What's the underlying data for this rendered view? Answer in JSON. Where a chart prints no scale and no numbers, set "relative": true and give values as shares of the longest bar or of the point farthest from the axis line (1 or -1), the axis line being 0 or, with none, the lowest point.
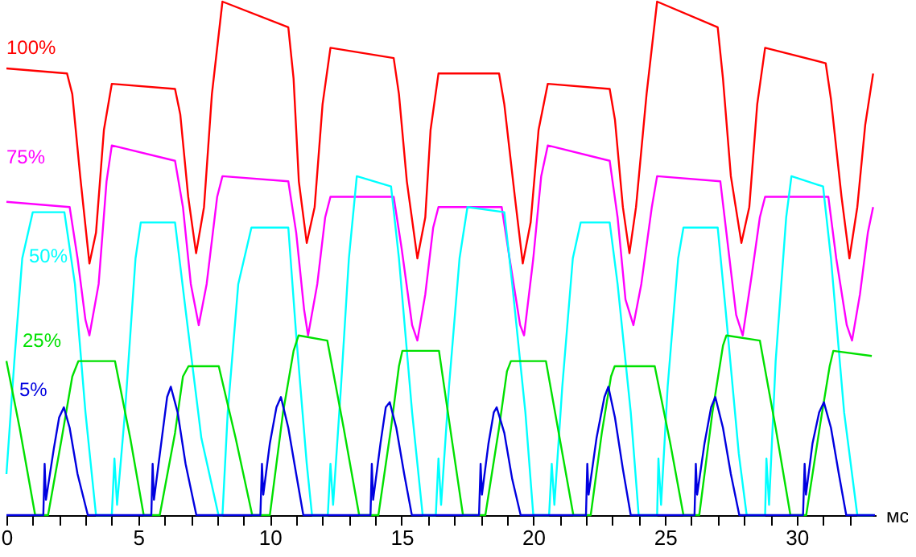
{
  "chart_data": {
    "type": "line",
    "relative": true,
    "xlabel": "мс",
    "xlim": [
      0,
      33
    ],
    "xticks": [
      0,
      {
        "value": 1,
        "label": null
      },
      {
        "value": 2,
        "label": null
      },
      {
        "value": 3,
        "label": null
      },
      {
        "value": 4,
        "label": null
      },
      5,
      {
        "value": 6,
        "label": null
      },
      {
        "value": 7,
        "label": null
      },
      {
        "value": 8,
        "label": null
      },
      {
        "value": 9,
        "label": null
      },
      10,
      {
        "value": 11,
        "label": null
      },
      {
        "value": 12,
        "label": null
      },
      {
        "value": 13,
        "label": null
      },
      {
        "value": 14,
        "label": null
      },
      15,
      {
        "value": 16,
        "label": null
      },
      {
        "value": 17,
        "label": null
      },
      {
        "value": 18,
        "label": null
      },
      {
        "value": 19,
        "label": null
      },
      20,
      {
        "value": 21,
        "label": null
      },
      {
        "value": 22,
        "label": null
      },
      {
        "value": 23,
        "label": null
      },
      {
        "value": 24,
        "label": null
      },
      25,
      {
        "value": 26,
        "label": null
      },
      {
        "value": 27,
        "label": null
      },
      {
        "value": 28,
        "label": null
      },
      {
        "value": 29,
        "label": null
      },
      30,
      {
        "value": 31,
        "label": null
      },
      {
        "value": 32,
        "label": null
      }
    ],
    "grid": false,
    "tick_labels": "x",
    "line_style": "solid",
    "marker": "none",
    "series": [
      {
        "name": "100%",
        "color": "#ff0000",
        "x": [
          0,
          2.3,
          2.5,
          2.8,
          3.15,
          3.4,
          3.7,
          4.0,
          6.4,
          6.6,
          6.9,
          7.2,
          7.5,
          7.8,
          8.2,
          10.7,
          10.9,
          11.1,
          11.4,
          11.7,
          12.0,
          12.3,
          14.7,
          14.9,
          15.2,
          15.6,
          15.9,
          16.1,
          16.4,
          18.7,
          18.9,
          19.3,
          19.6,
          19.9,
          20.2,
          20.55,
          22.9,
          23.1,
          23.4,
          23.65,
          23.9,
          24.3,
          24.7,
          27.0,
          27.2,
          27.5,
          27.9,
          28.2,
          28.5,
          28.8,
          31.1,
          31.3,
          31.7,
          32.0,
          32.3,
          32.6,
          32.9
        ],
        "values": [
          0.87,
          0.86,
          0.82,
          0.66,
          0.49,
          0.55,
          0.75,
          0.84,
          0.83,
          0.78,
          0.62,
          0.51,
          0.6,
          0.82,
          1.0,
          0.95,
          0.85,
          0.65,
          0.53,
          0.6,
          0.8,
          0.91,
          0.89,
          0.82,
          0.65,
          0.5,
          0.58,
          0.75,
          0.86,
          0.86,
          0.8,
          0.62,
          0.49,
          0.57,
          0.75,
          0.84,
          0.83,
          0.77,
          0.6,
          0.51,
          0.6,
          0.82,
          1.0,
          0.95,
          0.85,
          0.66,
          0.53,
          0.6,
          0.8,
          0.91,
          0.88,
          0.81,
          0.62,
          0.5,
          0.6,
          0.76,
          0.86
        ]
      },
      {
        "name": "75%",
        "color": "#ff00ff",
        "x": [
          0,
          2.4,
          2.7,
          3.0,
          3.15,
          3.5,
          3.8,
          4.0,
          6.4,
          6.7,
          7.0,
          7.3,
          7.6,
          8.0,
          8.2,
          10.7,
          11.0,
          11.3,
          11.45,
          11.8,
          12.1,
          12.3,
          14.7,
          15.0,
          15.4,
          15.6,
          15.9,
          16.2,
          16.4,
          18.8,
          19.1,
          19.5,
          19.65,
          20.0,
          20.3,
          20.55,
          22.9,
          23.2,
          23.5,
          23.8,
          24.1,
          24.5,
          24.7,
          27.1,
          27.4,
          27.7,
          27.95,
          28.3,
          28.6,
          28.8,
          31.2,
          31.5,
          31.9,
          32.1,
          32.4,
          32.7,
          32.9
        ],
        "values": [
          0.61,
          0.6,
          0.5,
          0.38,
          0.35,
          0.45,
          0.65,
          0.72,
          0.69,
          0.6,
          0.45,
          0.37,
          0.45,
          0.62,
          0.66,
          0.65,
          0.55,
          0.4,
          0.35,
          0.45,
          0.58,
          0.62,
          0.62,
          0.52,
          0.37,
          0.34,
          0.43,
          0.56,
          0.6,
          0.6,
          0.5,
          0.37,
          0.35,
          0.5,
          0.66,
          0.72,
          0.69,
          0.58,
          0.42,
          0.37,
          0.45,
          0.6,
          0.66,
          0.65,
          0.52,
          0.39,
          0.35,
          0.47,
          0.58,
          0.62,
          0.62,
          0.5,
          0.37,
          0.34,
          0.43,
          0.55,
          0.6
        ]
      },
      {
        "name": "50%",
        "color": "#00ffff",
        "x": [
          0,
          0.3,
          0.6,
          1.0,
          2.2,
          2.6,
          3.0,
          3.4,
          4.0,
          4.1,
          4.2,
          4.5,
          4.9,
          5.1,
          6.4,
          6.8,
          7.4,
          8.05,
          8.2,
          8.4,
          8.8,
          9.3,
          10.7,
          11.0,
          11.4,
          11.6,
          12.2,
          12.3,
          12.4,
          12.7,
          13.0,
          13.3,
          14.6,
          14.9,
          15.4,
          15.8,
          16.3,
          16.4,
          16.5,
          16.8,
          17.2,
          17.5,
          18.9,
          19.2,
          19.7,
          20.0,
          20.6,
          20.7,
          20.8,
          21.1,
          21.5,
          21.8,
          22.9,
          23.2,
          23.7,
          24.0,
          24.7,
          24.75,
          24.85,
          25.1,
          25.5,
          25.7,
          27.0,
          27.3,
          27.8,
          28.1,
          28.8,
          28.85,
          28.95,
          29.2,
          29.6,
          29.8,
          31.0,
          31.3,
          31.8,
          32.3,
          32.9
        ],
        "values": [
          0.08,
          0.3,
          0.5,
          0.59,
          0.59,
          0.45,
          0.2,
          0.0,
          0.0,
          0.11,
          0.02,
          0.2,
          0.5,
          0.57,
          0.57,
          0.4,
          0.15,
          0.0,
          0.0,
          0.2,
          0.45,
          0.56,
          0.56,
          0.35,
          0.1,
          0.0,
          0.0,
          0.1,
          0.02,
          0.25,
          0.5,
          0.66,
          0.64,
          0.5,
          0.2,
          0.0,
          0.0,
          0.11,
          0.02,
          0.25,
          0.5,
          0.6,
          0.59,
          0.45,
          0.2,
          0.0,
          0.0,
          0.1,
          0.02,
          0.25,
          0.5,
          0.57,
          0.57,
          0.45,
          0.2,
          0.0,
          0.0,
          0.11,
          0.02,
          0.25,
          0.5,
          0.56,
          0.56,
          0.4,
          0.12,
          0.0,
          0.0,
          0.11,
          0.02,
          0.3,
          0.58,
          0.66,
          0.64,
          0.5,
          0.2,
          0.0,
          0.0
        ]
      },
      {
        "name": "25%",
        "color": "#00e000",
        "x": [
          0,
          0.5,
          1.09,
          1.58,
          2.1,
          2.5,
          2.73,
          4.12,
          4.7,
          5.21,
          5.82,
          6.4,
          6.7,
          6.91,
          8.06,
          8.7,
          9.33,
          10.0,
          10.5,
          10.9,
          11.09,
          12.18,
          12.8,
          13.39,
          14.12,
          14.6,
          14.9,
          15.03,
          16.42,
          16.9,
          17.33,
          18.18,
          18.7,
          19.0,
          19.15,
          20.48,
          21.0,
          21.52,
          22.18,
          22.6,
          22.95,
          23.09,
          24.61,
          25.2,
          25.7,
          26.3,
          26.8,
          27.2,
          27.33,
          28.6,
          29.2,
          29.76,
          30.36,
          30.9,
          31.25,
          31.39,
          32.85
        ],
        "values": [
          0.3,
          0.17,
          0.0,
          0.0,
          0.15,
          0.27,
          0.3,
          0.3,
          0.15,
          0.0,
          0.0,
          0.16,
          0.27,
          0.29,
          0.29,
          0.15,
          0.0,
          0.0,
          0.2,
          0.32,
          0.35,
          0.34,
          0.17,
          0.0,
          0.0,
          0.17,
          0.29,
          0.32,
          0.32,
          0.15,
          0.0,
          0.0,
          0.17,
          0.28,
          0.3,
          0.3,
          0.15,
          0.0,
          0.0,
          0.16,
          0.27,
          0.29,
          0.29,
          0.14,
          0.0,
          0.0,
          0.2,
          0.33,
          0.35,
          0.34,
          0.17,
          0.0,
          0.0,
          0.18,
          0.29,
          0.32,
          0.31
        ]
      },
      {
        "name": "5%",
        "color": "#0000e0",
        "x": [
          0,
          1.4,
          1.45,
          1.5,
          1.8,
          2.0,
          2.18,
          2.4,
          2.7,
          3.09,
          5.5,
          5.55,
          5.6,
          5.9,
          6.1,
          6.24,
          6.5,
          6.8,
          7.21,
          9.64,
          9.7,
          9.75,
          10.0,
          10.25,
          10.42,
          10.7,
          11.0,
          11.27,
          13.82,
          13.87,
          13.92,
          14.2,
          14.4,
          14.55,
          14.8,
          15.1,
          15.39,
          17.94,
          18.0,
          18.05,
          18.3,
          18.5,
          18.61,
          18.9,
          19.2,
          19.52,
          22.0,
          22.05,
          22.1,
          22.4,
          22.7,
          22.85,
          23.1,
          23.4,
          23.7,
          26.12,
          26.17,
          26.22,
          26.5,
          26.75,
          26.91,
          27.2,
          27.5,
          27.82,
          30.24,
          30.3,
          30.35,
          30.6,
          30.85,
          31.03,
          31.3,
          31.6,
          31.88,
          32.97
        ],
        "values": [
          0,
          0,
          0.1,
          0.03,
          0.13,
          0.19,
          0.21,
          0.17,
          0.08,
          0.0,
          0.0,
          0.1,
          0.03,
          0.15,
          0.23,
          0.25,
          0.2,
          0.1,
          0.0,
          0.0,
          0.1,
          0.04,
          0.14,
          0.21,
          0.23,
          0.17,
          0.08,
          0.0,
          0.0,
          0.1,
          0.03,
          0.14,
          0.21,
          0.22,
          0.17,
          0.08,
          0.0,
          0.0,
          0.1,
          0.04,
          0.14,
          0.2,
          0.21,
          0.16,
          0.07,
          0.0,
          0.0,
          0.1,
          0.04,
          0.15,
          0.23,
          0.25,
          0.19,
          0.09,
          0.0,
          0.0,
          0.1,
          0.04,
          0.14,
          0.21,
          0.23,
          0.17,
          0.08,
          0.0,
          0.0,
          0.1,
          0.04,
          0.14,
          0.2,
          0.22,
          0.17,
          0.08,
          0.0,
          0.0
        ]
      }
    ]
  }
}
